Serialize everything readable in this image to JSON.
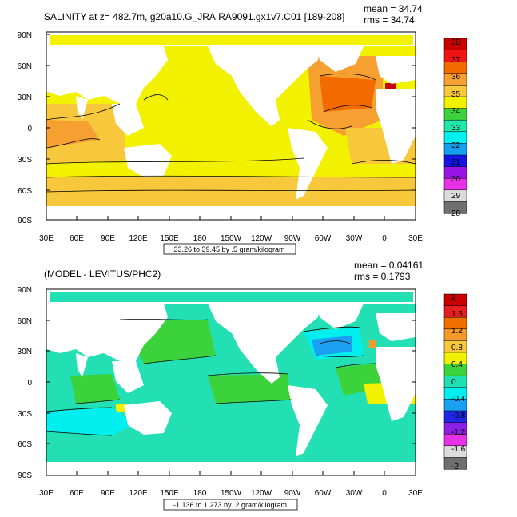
{
  "panels": [
    {
      "title": "SALINITY at z= 482.7m, g20a10.G_JRA.RA9091.gx1v7.C01 [189-208]",
      "mean": "mean = 34.74",
      "rms": "rms = 34.74",
      "range_label": "33.26 to 39.45 by .5 gram/kilogram",
      "lat_labels": [
        "90N",
        "60N",
        "30N",
        "0",
        "30S",
        "60S",
        "90S"
      ],
      "lon_labels": [
        "30E",
        "60E",
        "90E",
        "120E",
        "150E",
        "180",
        "150W",
        "120W",
        "90W",
        "60W",
        "30W",
        "0",
        "30E"
      ],
      "colorbar_labels": [
        "38",
        "37",
        "36",
        "35",
        "34",
        "33",
        "32",
        "31",
        "30",
        "29",
        "28"
      ]
    },
    {
      "title": "(MODEL - LEVITUS/PHC2)",
      "mean": "mean = 0.04161",
      "rms": "rms = 0.1793",
      "range_label": "-1.136 to 1.273 by .2 gram/kilogram",
      "lat_labels": [
        "90N",
        "60N",
        "30N",
        "0",
        "30S",
        "60S",
        "90S"
      ],
      "lon_labels": [
        "30E",
        "60E",
        "90E",
        "120E",
        "150E",
        "180",
        "150W",
        "120W",
        "90W",
        "60W",
        "30W",
        "0",
        "30E"
      ],
      "colorbar_labels": [
        "2",
        "1.6",
        "1.2",
        "0.8",
        "0.4",
        "0",
        "-0.4",
        "-0.8",
        "-1.2",
        "-1.6",
        "-2"
      ]
    }
  ],
  "colors": {
    "salinity_scale": [
      "#c80000",
      "#f01414",
      "#f26a00",
      "#f5a030",
      "#f7c83c",
      "#f2f200",
      "#3cd23c",
      "#20e6aa",
      "#00f0f0",
      "#14a0f0",
      "#1414e6",
      "#9614e6",
      "#e632e6",
      "#dcdcdc",
      "#707070"
    ],
    "difference_scale": [
      "#c80000",
      "#e61e1e",
      "#f06e00",
      "#f59a28",
      "#f7c83c",
      "#f0f000",
      "#3cd23c",
      "#22e0b4",
      "#00eeee",
      "#1aa0f0",
      "#1e28e6",
      "#8c1ee6",
      "#e632e6",
      "#dcdcdc",
      "#6e6e6e"
    ],
    "land": "#ffffff"
  },
  "map": {
    "projection": "equirectangular",
    "lon_range": [
      "30E",
      "30E"
    ],
    "lat_range": [
      "90S",
      "90N"
    ]
  }
}
